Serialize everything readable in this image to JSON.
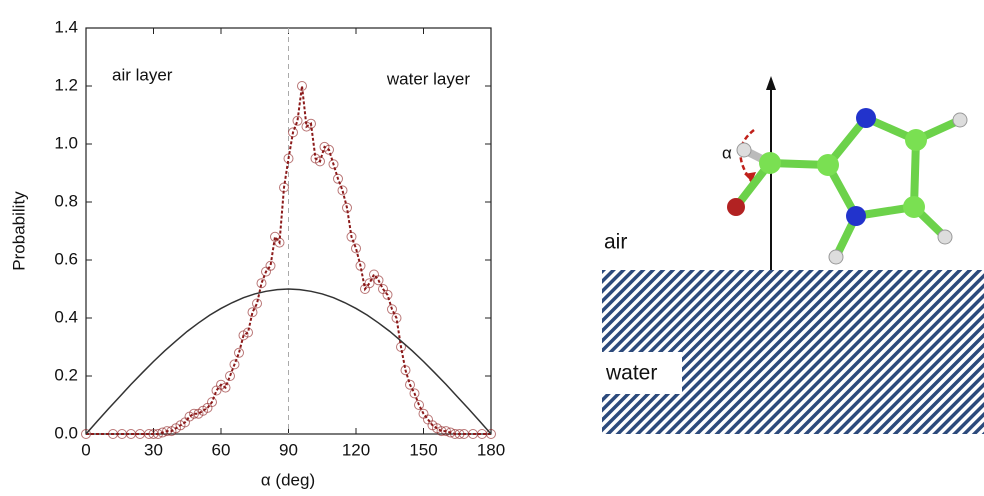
{
  "chart_data": {
    "type": "line",
    "xlabel": "α (deg)",
    "ylabel": "Probability",
    "xlim": [
      0,
      180
    ],
    "ylim": [
      0,
      1.4
    ],
    "xticks": [
      0,
      30,
      60,
      90,
      120,
      150,
      180
    ],
    "yticks": [
      {
        "value": 0,
        "label": "0.0"
      },
      0.2,
      0.4,
      0.6,
      0.8,
      {
        "value": 1,
        "label": "1.0"
      },
      1.2,
      1.4
    ],
    "vline": 90,
    "annotations": [
      "air layer",
      "water layer"
    ],
    "series": [
      {
        "color": "#8b1a1a",
        "marker": "circle",
        "linestyle": "dashed",
        "x": [
          0,
          12,
          16,
          20,
          24,
          28,
          30,
          32,
          34,
          36,
          38,
          40,
          42,
          44,
          46,
          48,
          50,
          52,
          54,
          56,
          58,
          60,
          62,
          64,
          66,
          68,
          70,
          72,
          74,
          76,
          78,
          80,
          82,
          84,
          86,
          88,
          90,
          92,
          94,
          96,
          98,
          100,
          102,
          104,
          106,
          108,
          110,
          112,
          114,
          116,
          118,
          120,
          122,
          124,
          126,
          128,
          130,
          132,
          134,
          136,
          138,
          140,
          142,
          144,
          146,
          148,
          150,
          152,
          154,
          156,
          158,
          160,
          162,
          164,
          166,
          168,
          172,
          176,
          180
        ],
        "values": [
          0,
          0,
          0,
          0,
          0,
          0,
          0,
          0,
          0.005,
          0.01,
          0.01,
          0.02,
          0.03,
          0.04,
          0.06,
          0.07,
          0.07,
          0.08,
          0.09,
          0.11,
          0.15,
          0.17,
          0.16,
          0.2,
          0.24,
          0.28,
          0.34,
          0.35,
          0.42,
          0.45,
          0.52,
          0.56,
          0.58,
          0.68,
          0.66,
          0.85,
          0.95,
          1.04,
          1.08,
          1.2,
          1.06,
          1.07,
          0.95,
          0.94,
          0.99,
          0.98,
          0.93,
          0.88,
          0.84,
          0.78,
          0.68,
          0.64,
          0.58,
          0.5,
          0.52,
          0.55,
          0.53,
          0.5,
          0.48,
          0.43,
          0.4,
          0.3,
          0.22,
          0.17,
          0.14,
          0.1,
          0.07,
          0.05,
          0.03,
          0.02,
          0.01,
          0.01,
          0.005,
          0,
          0,
          0,
          0,
          0,
          0
        ]
      },
      {
        "color": "#333333",
        "linestyle": "solid",
        "x": [
          0,
          5,
          10,
          15,
          20,
          25,
          30,
          35,
          40,
          45,
          50,
          55,
          60,
          65,
          70,
          75,
          80,
          85,
          90,
          95,
          100,
          105,
          110,
          115,
          120,
          125,
          130,
          135,
          140,
          145,
          150,
          155,
          160,
          165,
          170,
          175,
          180
        ],
        "values": [
          0,
          0.044,
          0.087,
          0.129,
          0.171,
          0.211,
          0.25,
          0.287,
          0.321,
          0.354,
          0.383,
          0.41,
          0.433,
          0.453,
          0.47,
          0.483,
          0.492,
          0.498,
          0.5,
          0.498,
          0.492,
          0.483,
          0.47,
          0.453,
          0.433,
          0.41,
          0.383,
          0.354,
          0.321,
          0.287,
          0.25,
          0.211,
          0.171,
          0.129,
          0.087,
          0.044,
          0
        ]
      }
    ]
  },
  "diagram": {
    "air": "air",
    "water": "water",
    "angle": "α"
  }
}
